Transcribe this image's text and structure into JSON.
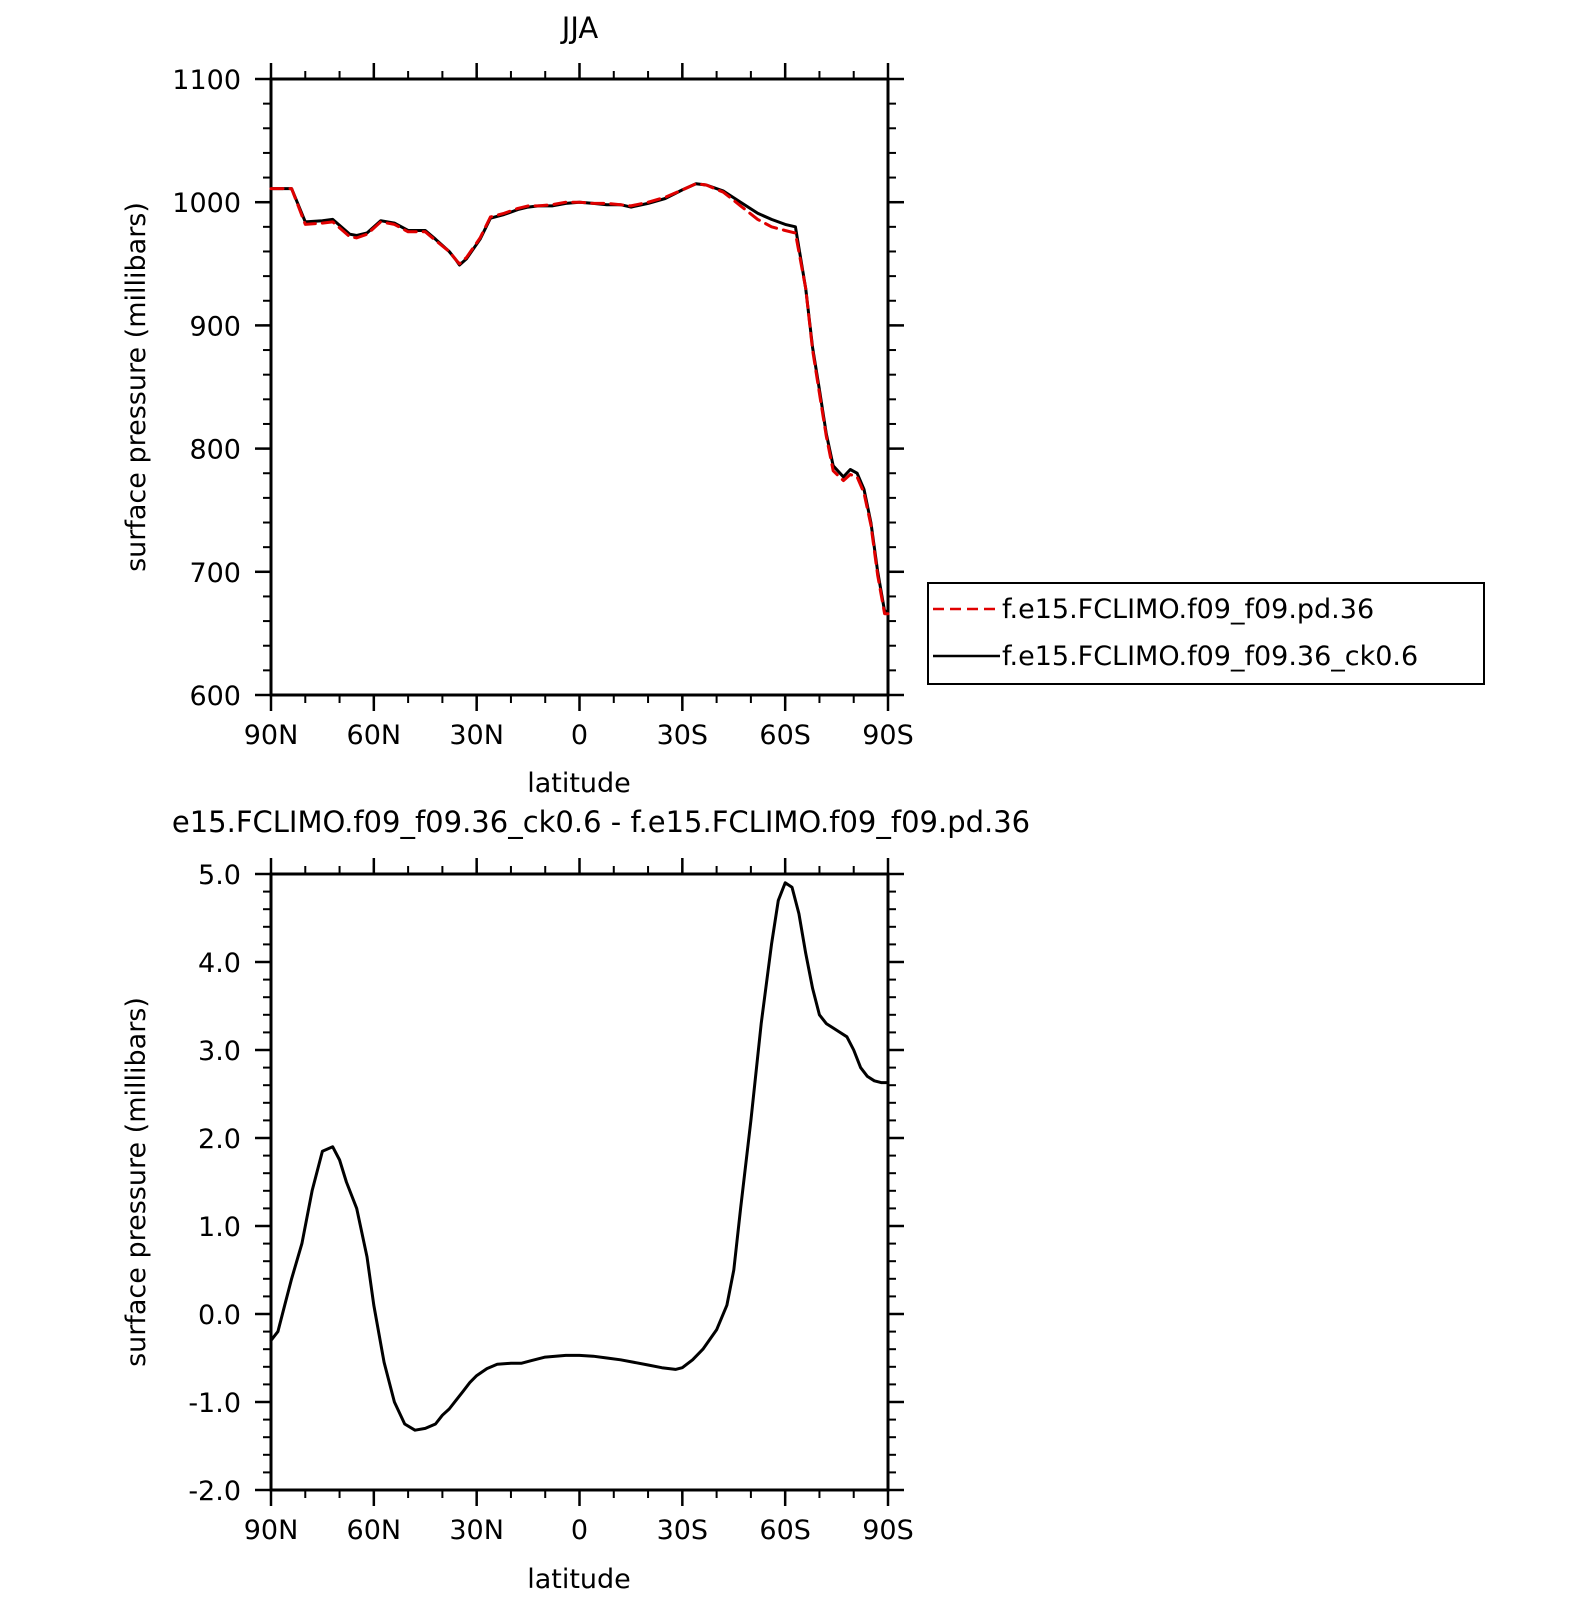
{
  "chart_data": [
    {
      "type": "line",
      "title": "JJA",
      "xlabel": "latitude",
      "ylabel": "surface pressure (millibars)",
      "xlim": [
        90,
        -90
      ],
      "ylim": [
        600,
        1100
      ],
      "xticks": [
        {
          "value": 90,
          "label": "90N"
        },
        {
          "value": 60,
          "label": "60N"
        },
        {
          "value": 30,
          "label": "30N"
        },
        {
          "value": 0,
          "label": "0"
        },
        {
          "value": -30,
          "label": "30S"
        },
        {
          "value": -60,
          "label": "60S"
        },
        {
          "value": -90,
          "label": "90S"
        }
      ],
      "yticks": [
        {
          "value": 600,
          "label": "600"
        },
        {
          "value": 700,
          "label": "700"
        },
        {
          "value": 800,
          "label": "800"
        },
        {
          "value": 900,
          "label": "900"
        },
        {
          "value": 1000,
          "label": "1000"
        },
        {
          "value": 1100,
          "label": "1100"
        }
      ],
      "legend_position": "right",
      "series": [
        {
          "name": "f.e15.FCLIMO.f09_f09.pd.36",
          "color": "#e00000",
          "style": "dashed",
          "x": [
            90,
            84,
            80,
            75,
            72,
            67,
            65,
            62,
            58,
            54,
            50,
            45,
            42,
            38,
            36,
            35,
            33,
            29,
            26,
            22,
            18,
            15,
            12,
            8,
            4,
            0,
            -4,
            -8,
            -12,
            -15,
            -20,
            -25,
            -30,
            -34,
            -37,
            -42,
            -47,
            -52,
            -56,
            -60,
            -63,
            -66,
            -68,
            -70,
            -72,
            -74,
            -77,
            -79,
            -81,
            -83,
            -85,
            -87,
            -89,
            -90
          ],
          "y": [
            1011,
            1011,
            982,
            983,
            984,
            972,
            971,
            974,
            984,
            982,
            976,
            976,
            969,
            960,
            953,
            950,
            955,
            971,
            988,
            991,
            995,
            997,
            997,
            998,
            1000,
            1000,
            999,
            999,
            998,
            997,
            1000,
            1004,
            1010,
            1015,
            1014,
            1008,
            997,
            986,
            980,
            977,
            975,
            930,
            880,
            845,
            810,
            782,
            774,
            779,
            777,
            764,
            738,
            697,
            666,
            666
          ]
        },
        {
          "name": "f.e15.FCLIMO.f09_f09.36_ck0.6",
          "color": "#000000",
          "style": "solid",
          "x": [
            90,
            84,
            80,
            75,
            72,
            67,
            65,
            62,
            58,
            54,
            50,
            45,
            42,
            38,
            36,
            35,
            33,
            29,
            26,
            22,
            18,
            15,
            12,
            8,
            4,
            0,
            -4,
            -8,
            -12,
            -15,
            -20,
            -25,
            -30,
            -34,
            -37,
            -42,
            -47,
            -52,
            -56,
            -60,
            -63,
            -66,
            -68,
            -70,
            -72,
            -74,
            -77,
            -79,
            -81,
            -83,
            -85,
            -87,
            -89,
            -90
          ],
          "y": [
            1011,
            1011,
            984,
            985,
            986,
            974,
            973,
            975,
            985,
            983,
            977,
            977,
            970,
            960,
            953,
            949,
            954,
            970,
            987,
            990,
            994,
            996,
            997,
            997,
            999,
            1000,
            999,
            998,
            998,
            996,
            999,
            1003,
            1010,
            1015,
            1014,
            1009,
            1000,
            991,
            986,
            982,
            980,
            930,
            882,
            848,
            812,
            786,
            777,
            783,
            780,
            767,
            740,
            700,
            668,
            668
          ]
        }
      ]
    },
    {
      "type": "line",
      "title": "e15.FCLIMO.f09_f09.36_ck0.6 - f.e15.FCLIMO.f09_f09.pd.36",
      "xlabel": "latitude",
      "ylabel": "surface pressure (millibars)",
      "xlim": [
        90,
        -90
      ],
      "ylim": [
        -2.0,
        5.0
      ],
      "xticks": [
        {
          "value": 90,
          "label": "90N"
        },
        {
          "value": 60,
          "label": "60N"
        },
        {
          "value": 30,
          "label": "30N"
        },
        {
          "value": 0,
          "label": "0"
        },
        {
          "value": -30,
          "label": "30S"
        },
        {
          "value": -60,
          "label": "60S"
        },
        {
          "value": -90,
          "label": "90S"
        }
      ],
      "yticks": [
        {
          "value": -2.0,
          "label": "-2.0"
        },
        {
          "value": -1.0,
          "label": "-1.0"
        },
        {
          "value": 0.0,
          "label": "0.0"
        },
        {
          "value": 1.0,
          "label": "1.0"
        },
        {
          "value": 2.0,
          "label": "2.0"
        },
        {
          "value": 3.0,
          "label": "3.0"
        },
        {
          "value": 4.0,
          "label": "4.0"
        },
        {
          "value": 5.0,
          "label": "5.0"
        }
      ],
      "series": [
        {
          "color": "#000000",
          "style": "solid",
          "x": [
            90,
            88,
            86,
            84,
            81,
            78,
            75,
            72,
            70,
            68,
            65,
            62,
            60,
            57,
            54,
            51,
            48,
            45,
            42,
            40,
            38,
            36,
            34,
            32,
            30,
            27,
            24,
            20,
            17,
            14,
            10,
            7,
            4,
            0,
            -4,
            -8,
            -12,
            -16,
            -20,
            -24,
            -28,
            -30,
            -33,
            -36,
            -40,
            -43,
            -45,
            -47,
            -50,
            -53,
            -56,
            -58,
            -60,
            -62,
            -64,
            -66,
            -68,
            -70,
            -72,
            -74,
            -76,
            -78,
            -80,
            -82,
            -84,
            -86,
            -88,
            -90
          ],
          "y": [
            -0.3,
            -0.2,
            0.1,
            0.4,
            0.8,
            1.4,
            1.85,
            1.9,
            1.75,
            1.5,
            1.2,
            0.65,
            0.1,
            -0.55,
            -1.0,
            -1.25,
            -1.32,
            -1.3,
            -1.25,
            -1.15,
            -1.08,
            -0.98,
            -0.88,
            -0.78,
            -0.7,
            -0.62,
            -0.57,
            -0.56,
            -0.56,
            -0.53,
            -0.49,
            -0.48,
            -0.47,
            -0.47,
            -0.48,
            -0.5,
            -0.52,
            -0.55,
            -0.58,
            -0.61,
            -0.63,
            -0.61,
            -0.52,
            -0.4,
            -0.18,
            0.1,
            0.5,
            1.2,
            2.2,
            3.3,
            4.2,
            4.7,
            4.9,
            4.85,
            4.55,
            4.1,
            3.7,
            3.4,
            3.3,
            3.25,
            3.2,
            3.15,
            3.0,
            2.8,
            2.7,
            2.65,
            2.63,
            2.63
          ]
        }
      ]
    }
  ]
}
